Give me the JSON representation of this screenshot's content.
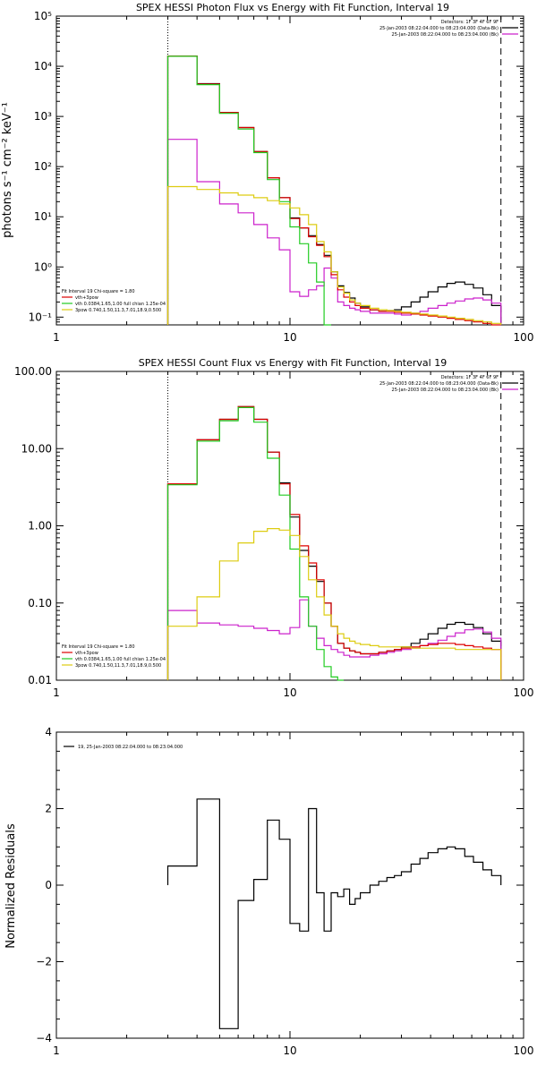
{
  "chart_data": [
    {
      "type": "line",
      "title": "SPEX HESSI Photon Flux vs Energy with Fit Function, Interval 19",
      "xlabel": "",
      "ylabel": "photons s⁻¹ cm⁻² keV⁻¹",
      "xscale": "log",
      "yscale": "log",
      "xlim": [
        1,
        100
      ],
      "ylim": [
        0.07,
        100000
      ],
      "x_ticks": [
        1,
        10,
        100
      ],
      "x_tick_labels": [
        "1",
        "10",
        "100"
      ],
      "y_ticks": [
        0.1,
        1,
        10,
        100,
        1000,
        10000,
        100000
      ],
      "y_tick_labels": [
        "10⁻¹",
        "10⁰",
        "10¹",
        "10²",
        "10³",
        "10⁴",
        "10⁵"
      ],
      "vlines": [
        {
          "x": 3,
          "style": "dotted"
        },
        {
          "x": 80,
          "style": "dashed"
        }
      ],
      "header_lines": [
        "Detectors: 1F 3F 4F 6F 9F",
        "25-Jan-2003 08:22:04.000 to 08:23:04.000 (Data-Bk)",
        "25-Jan-2003 08:22:04.000 to 08:23:04.000 (Bk)"
      ],
      "legend": [
        "Fit Interval 19   Chi-square = 1.80",
        "vth+3pow",
        "vth 0.0384,1.65,1.00  full chian 1.25e-04",
        "3pow 0.740,1.50,11.3,7.01,18.9,0.500"
      ],
      "bin_edges": [
        3,
        4,
        5,
        6,
        7,
        8,
        9,
        10,
        11,
        12,
        13,
        14,
        15,
        16,
        17,
        18,
        19,
        20,
        22,
        24,
        26,
        28,
        30,
        33,
        36,
        39,
        43,
        47,
        51,
        56,
        61,
        67,
        73,
        80
      ],
      "series": [
        {
          "name": "Data-Bk",
          "color": "#000000",
          "values": [
            16000,
            4500,
            1200,
            600,
            200,
            60,
            24,
            9.5,
            6,
            4.2,
            2.8,
            1.7,
            0.8,
            0.42,
            0.31,
            0.24,
            0.19,
            0.16,
            0.14,
            0.13,
            0.135,
            0.14,
            0.16,
            0.2,
            0.25,
            0.32,
            0.4,
            0.47,
            0.5,
            0.45,
            0.38,
            0.28,
            0.17
          ]
        },
        {
          "name": "Bk",
          "color": "#cc22cc",
          "values": [
            350,
            50,
            18,
            12,
            7,
            3.8,
            2.2,
            0.32,
            0.26,
            0.35,
            0.42,
            0.95,
            0.6,
            0.2,
            0.17,
            0.15,
            0.14,
            0.13,
            0.12,
            0.12,
            0.12,
            0.115,
            0.11,
            0.12,
            0.13,
            0.15,
            0.17,
            0.19,
            0.21,
            0.23,
            0.24,
            0.22,
            0.19
          ]
        },
        {
          "name": "vth+3pow",
          "color": "#dd0000",
          "values": [
            16000,
            4400,
            1200,
            600,
            200,
            60,
            24,
            9.2,
            6,
            4,
            2.7,
            1.6,
            0.7,
            0.35,
            0.25,
            0.2,
            0.17,
            0.15,
            0.14,
            0.13,
            0.13,
            0.125,
            0.12,
            0.115,
            0.11,
            0.105,
            0.1,
            0.095,
            0.09,
            0.085,
            0.08,
            0.075,
            0.07
          ]
        },
        {
          "name": "vth",
          "color": "#22cc22",
          "values": [
            15800,
            4300,
            1150,
            560,
            190,
            55,
            20,
            6.3,
            2.9,
            1.2,
            0.5,
            0.06
          ]
        },
        {
          "name": "3pow",
          "color": "#ddcc11",
          "values": [
            40,
            35,
            30,
            27,
            24,
            21,
            18,
            15,
            11,
            7,
            3.2,
            2,
            0.8,
            0.4,
            0.3,
            0.22,
            0.19,
            0.17,
            0.15,
            0.14,
            0.135,
            0.13,
            0.125,
            0.12,
            0.115,
            0.11,
            0.105,
            0.1,
            0.095,
            0.09,
            0.085,
            0.08,
            0.075
          ]
        }
      ]
    },
    {
      "type": "line",
      "title": "SPEX HESSI Count Flux vs Energy with Fit Function, Interval 19",
      "xlabel": "",
      "ylabel": "",
      "xscale": "log",
      "yscale": "log",
      "xlim": [
        1,
        100
      ],
      "ylim": [
        0.01,
        100
      ],
      "x_ticks": [
        1,
        10,
        100
      ],
      "x_tick_labels": [
        "1",
        "10",
        "100"
      ],
      "y_ticks": [
        0.01,
        0.1,
        1,
        10,
        100
      ],
      "y_tick_labels": [
        "0.01",
        "0.10",
        "1.00",
        "10.00",
        "100.00"
      ],
      "vlines": [
        {
          "x": 3,
          "style": "dotted"
        },
        {
          "x": 80,
          "style": "dashed"
        }
      ],
      "header_lines": [
        "Detectors: 1F 3F 4F 6F 9F",
        "25-Jan-2003 08:22:04.000 to 08:23:04.000 (Data-Bk)",
        "25-Jan-2003 08:22:04.000 to 08:23:04.000 (Bk)"
      ],
      "legend": [
        "Fit Interval 19   Chi-square = 1.80",
        "vth+3pow",
        "vth 0.0384,1.65,1.00  full chian 1.25e-04",
        "3pow 0.740,1.50,11.3,7.01,18.9,0.500"
      ],
      "bin_edges": [
        3,
        4,
        5,
        6,
        7,
        8,
        9,
        10,
        11,
        12,
        13,
        14,
        15,
        16,
        17,
        18,
        19,
        20,
        22,
        24,
        26,
        28,
        30,
        33,
        36,
        39,
        43,
        47,
        51,
        56,
        61,
        67,
        73,
        80
      ],
      "series": [
        {
          "name": "Data-Bk",
          "color": "#000000",
          "values": [
            3.5,
            13,
            24,
            35,
            24,
            9,
            3.6,
            1.3,
            0.48,
            0.3,
            0.19,
            0.1,
            0.05,
            0.03,
            0.026,
            0.024,
            0.023,
            0.022,
            0.022,
            0.023,
            0.024,
            0.025,
            0.027,
            0.03,
            0.034,
            0.04,
            0.047,
            0.053,
            0.056,
            0.053,
            0.048,
            0.04,
            0.032
          ]
        },
        {
          "name": "Bk",
          "color": "#cc22cc",
          "values": [
            0.08,
            0.055,
            0.052,
            0.05,
            0.047,
            0.044,
            0.04,
            0.048,
            0.11,
            0.05,
            0.035,
            0.028,
            0.025,
            0.023,
            0.021,
            0.02,
            0.02,
            0.02,
            0.021,
            0.022,
            0.023,
            0.024,
            0.025,
            0.026,
            0.028,
            0.03,
            0.033,
            0.037,
            0.041,
            0.045,
            0.046,
            0.042,
            0.035
          ]
        },
        {
          "name": "vth+3pow",
          "color": "#dd0000",
          "values": [
            3.5,
            13,
            24,
            35,
            24,
            9,
            3.5,
            1.4,
            0.55,
            0.33,
            0.2,
            0.1,
            0.05,
            0.03,
            0.026,
            0.024,
            0.023,
            0.022,
            0.022,
            0.023,
            0.024,
            0.025,
            0.026,
            0.027,
            0.028,
            0.029,
            0.03,
            0.03,
            0.029,
            0.028,
            0.027,
            0.026,
            0.025
          ]
        },
        {
          "name": "vth",
          "color": "#22cc22",
          "values": [
            3.4,
            12.5,
            23,
            34,
            22,
            7.5,
            2.5,
            0.5,
            0.12,
            0.05,
            0.025,
            0.015,
            0.011,
            0.009
          ]
        },
        {
          "name": "3pow",
          "color": "#ddcc11",
          "values": [
            0.05,
            0.12,
            0.35,
            0.6,
            0.85,
            0.92,
            0.88,
            0.75,
            0.4,
            0.2,
            0.12,
            0.07,
            0.05,
            0.04,
            0.035,
            0.032,
            0.03,
            0.029,
            0.028,
            0.027,
            0.027,
            0.027,
            0.027,
            0.026,
            0.026,
            0.026,
            0.026,
            0.026,
            0.025,
            0.025,
            0.025,
            0.025,
            0.025
          ]
        }
      ]
    },
    {
      "type": "line",
      "title": "",
      "xlabel": "",
      "ylabel": "Normalized Residuals",
      "xscale": "log",
      "yscale": "linear",
      "xlim": [
        1,
        100
      ],
      "ylim": [
        -4,
        4
      ],
      "x_ticks": [
        1,
        10,
        100
      ],
      "x_tick_labels": [
        "1",
        "10",
        "100"
      ],
      "y_ticks": [
        -4,
        -2,
        0,
        2,
        4
      ],
      "y_tick_labels": [
        "−4",
        "−2",
        "0",
        "2",
        "4"
      ],
      "legend": [
        "19, 25-Jan-2003 08:22:04.000 to 08:23:04.000"
      ],
      "bin_edges": [
        3,
        4,
        5,
        6,
        7,
        8,
        9,
        10,
        11,
        12,
        13,
        14,
        15,
        16,
        17,
        18,
        19,
        20,
        22,
        24,
        26,
        28,
        30,
        33,
        36,
        39,
        43,
        47,
        51,
        56,
        61,
        67,
        73,
        80
      ],
      "series": [
        {
          "name": "19, 25-Jan-2003 08:22:04.000 to 08:23:04.000",
          "color": "#000000",
          "values": [
            0.5,
            2.25,
            -3.75,
            -0.4,
            0.15,
            1.7,
            1.2,
            -1.0,
            -1.2,
            2.0,
            -0.2,
            -1.2,
            -0.2,
            -0.3,
            -0.1,
            -0.5,
            -0.35,
            -0.2,
            0.0,
            0.1,
            0.2,
            0.25,
            0.35,
            0.55,
            0.7,
            0.85,
            0.95,
            1.0,
            0.95,
            0.75,
            0.6,
            0.4,
            0.25
          ]
        }
      ]
    }
  ]
}
